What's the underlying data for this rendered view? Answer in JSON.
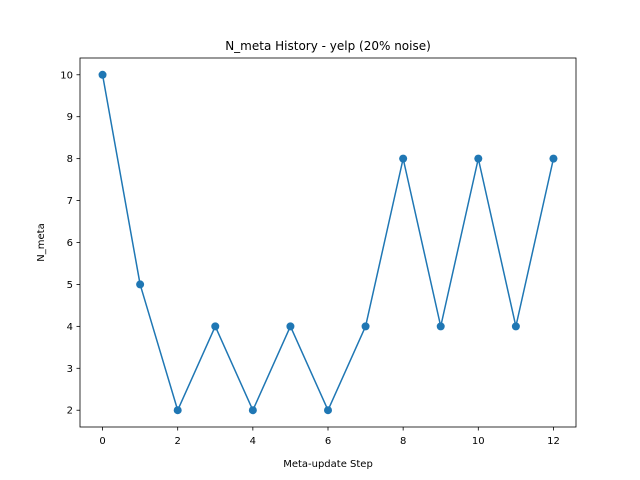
{
  "chart_data": {
    "type": "line",
    "title": "N_meta History - yelp (20% noise)",
    "xlabel": "Meta-update Step",
    "ylabel": "N_meta",
    "x": [
      0,
      1,
      2,
      3,
      4,
      5,
      6,
      7,
      8,
      9,
      10,
      11,
      12
    ],
    "series": [
      {
        "values": [
          10,
          5,
          2,
          4,
          2,
          4,
          2,
          4,
          8,
          4,
          8,
          4,
          8
        ],
        "color": "#1f77b4",
        "marker": "circle"
      }
    ],
    "xlim": [
      -0.6,
      12.6
    ],
    "ylim": [
      1.6,
      10.4
    ],
    "xticks": [
      0,
      2,
      4,
      6,
      8,
      10,
      12
    ],
    "yticks": [
      2,
      3,
      4,
      5,
      6,
      7,
      8,
      9,
      10
    ],
    "grid": false,
    "legend": "none"
  }
}
